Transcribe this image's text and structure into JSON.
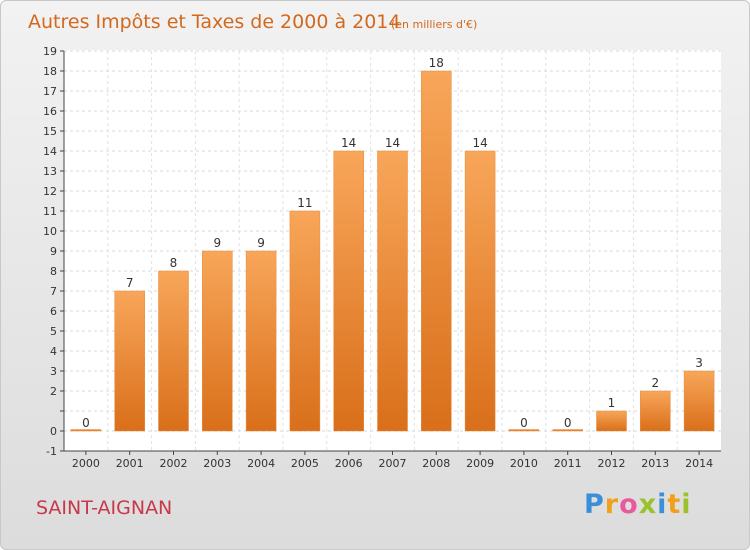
{
  "chart_data": {
    "type": "bar",
    "title": "Autres Impôts et Taxes de 2000 à 2014",
    "subtitle": "(en milliers d'€)",
    "categories": [
      "2000",
      "2001",
      "2002",
      "2003",
      "2004",
      "2005",
      "2006",
      "2007",
      "2008",
      "2009",
      "2010",
      "2011",
      "2012",
      "2013",
      "2014"
    ],
    "values": [
      0,
      7,
      8,
      9,
      9,
      11,
      14,
      14,
      18,
      14,
      0,
      0,
      1,
      2,
      3
    ],
    "data_labels": [
      "0",
      "7",
      "8",
      "9",
      "9",
      "11",
      "14",
      "14",
      "18",
      "14",
      "0",
      "0",
      "1",
      "2",
      "3"
    ],
    "ylim": [
      -1,
      19
    ],
    "y_ticks": [
      "-1",
      "0",
      "",
      "2",
      "3",
      "4",
      "5",
      "6",
      "7",
      "8",
      "9",
      "10",
      "11",
      "12",
      "13",
      "14",
      "15",
      "16",
      "17",
      "18",
      "19"
    ],
    "bar_color": "#f08a2c",
    "grid": true
  },
  "commune_label": "SAINT-AIGNAN",
  "commune_color": "#c8384a",
  "logo": {
    "text": "Proxiti",
    "letters": [
      "P",
      "r",
      "o",
      "x",
      "i",
      "t",
      "i"
    ]
  }
}
